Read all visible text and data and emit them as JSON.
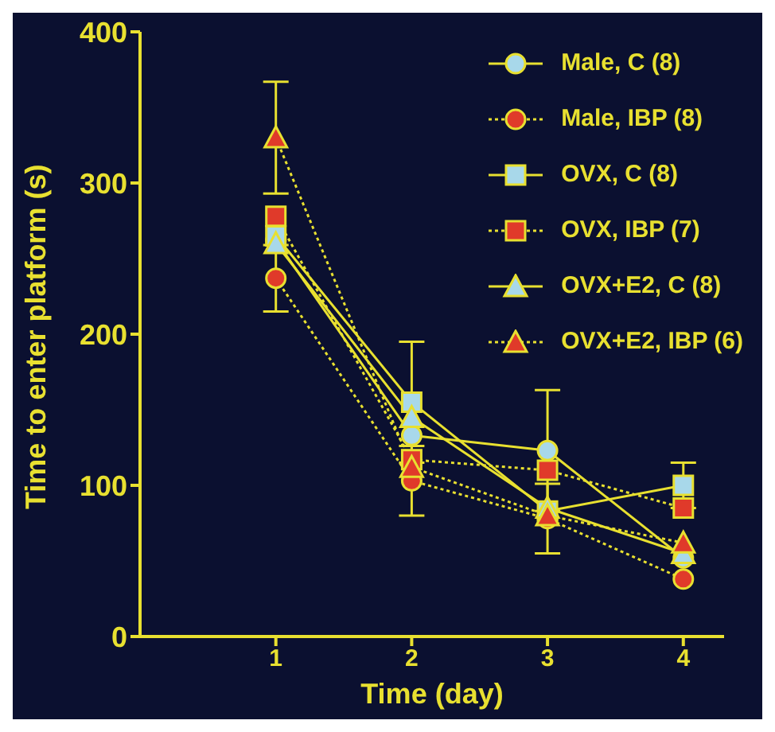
{
  "chart_data": {
    "type": "line",
    "xlabel": "Time (day)",
    "ylabel": "Time to enter platform (s)",
    "x": [
      1,
      2,
      3,
      4
    ],
    "xlim": [
      0,
      4.3
    ],
    "xticks": [
      1,
      2,
      3,
      4
    ],
    "ylim": [
      0,
      400
    ],
    "yticks": [
      0,
      100,
      200,
      300,
      400
    ],
    "legend": "top right",
    "series": [
      {
        "name": "Male, C (8)",
        "color": "#a8d8ea",
        "marker": "circle",
        "line_style": "solid",
        "values": [
          262,
          133,
          123,
          52
        ],
        "errors": [
          null,
          null,
          40,
          null
        ]
      },
      {
        "name": "Male, IBP (8)",
        "color": "#e03a2a",
        "marker": "circle",
        "line_style": "dotted",
        "values": [
          237,
          103,
          78,
          38
        ],
        "errors": [
          22,
          23,
          23,
          null
        ]
      },
      {
        "name": "OVX, C (8)",
        "color": "#a8d8ea",
        "marker": "square",
        "line_style": "solid",
        "values": [
          265,
          155,
          83,
          100
        ],
        "errors": [
          null,
          40,
          null,
          15
        ]
      },
      {
        "name": "OVX, IBP (7)",
        "color": "#e03a2a",
        "marker": "square",
        "line_style": "dotted",
        "values": [
          278,
          117,
          110,
          85
        ]
      },
      {
        "name": "OVX+E2, C (8)",
        "color": "#a8d8ea",
        "marker": "triangle",
        "line_style": "solid",
        "values": [
          260,
          145,
          85,
          55
        ]
      },
      {
        "name": "OVX+E2, IBP (6)",
        "color": "#e03a2a",
        "marker": "triangle",
        "line_style": "dotted",
        "values": [
          330,
          112,
          80,
          62
        ],
        "errors": [
          37,
          null,
          null,
          null
        ]
      }
    ]
  }
}
